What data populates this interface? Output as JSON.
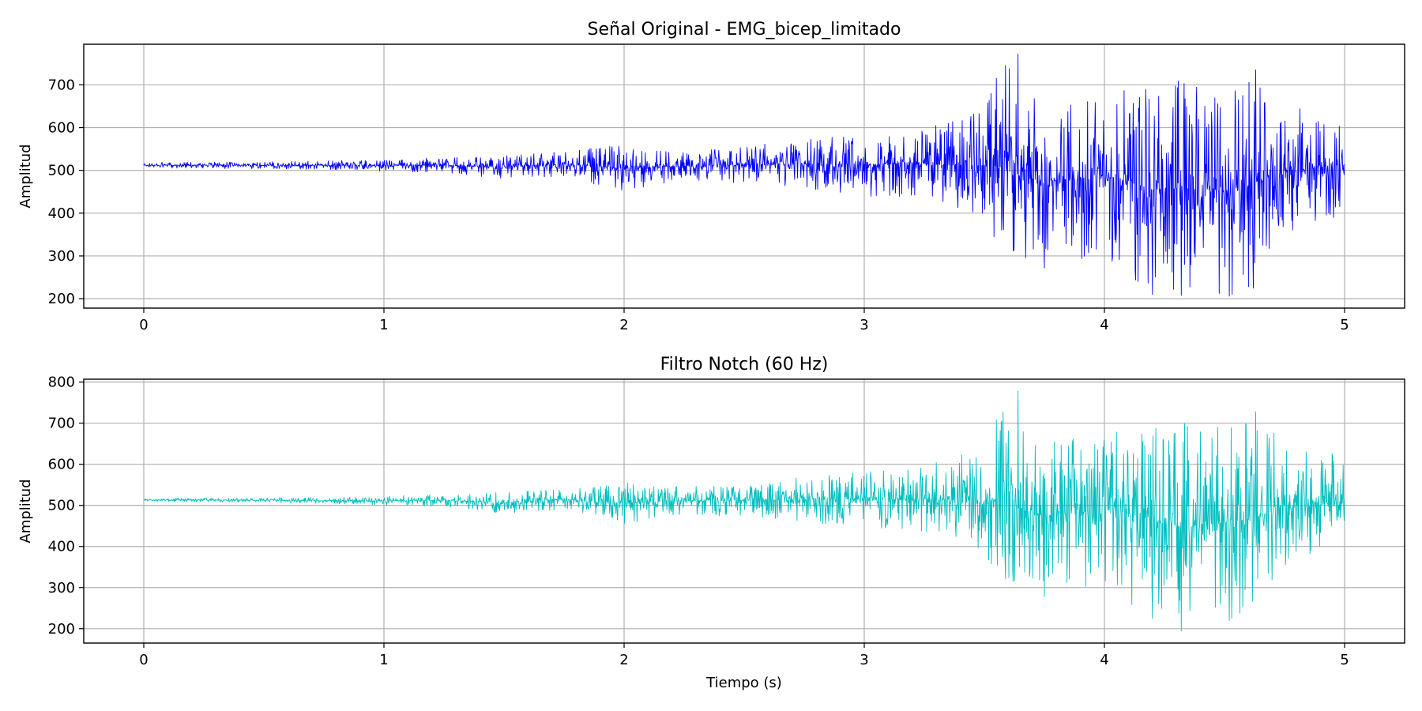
{
  "chart_data": [
    {
      "type": "line",
      "title": "Señal Original - EMG_bicep_limitado",
      "xlabel": "",
      "ylabel": "Amplitud",
      "xlim": [
        -0.25,
        5.25
      ],
      "ylim": [
        178,
        795
      ],
      "xticks": [
        "0",
        "1",
        "2",
        "3",
        "4",
        "5"
      ],
      "yticks": [
        "200",
        "300",
        "400",
        "500",
        "600",
        "700"
      ],
      "grid": true,
      "series": [
        {
          "color": "#0000ff",
          "x": [
            0.0,
            0.25,
            0.5,
            0.75,
            1.0,
            1.25,
            1.5,
            1.75,
            2.0,
            2.25,
            2.5,
            2.75,
            3.0,
            3.25,
            3.5,
            3.55,
            3.62,
            3.64,
            3.75,
            4.0,
            4.2,
            4.32,
            4.52,
            4.63,
            4.75,
            5.0
          ],
          "y": [
            512,
            514,
            512,
            512,
            513,
            518,
            512,
            520,
            515,
            518,
            516,
            520,
            514,
            518,
            512,
            715,
            312,
            772,
            272,
            515,
            210,
            208,
            206,
            735,
            500,
            515
          ],
          "envelope_upper": [
            518,
            520,
            520,
            522,
            525,
            530,
            535,
            545,
            560,
            545,
            555,
            575,
            590,
            600,
            640,
            720,
            770,
            700,
            650,
            680,
            700,
            710,
            700,
            735,
            650,
            630
          ],
          "envelope_lower": [
            506,
            504,
            504,
            502,
            498,
            495,
            480,
            485,
            450,
            475,
            470,
            455,
            440,
            430,
            380,
            310,
            290,
            275,
            300,
            290,
            210,
            205,
            205,
            215,
            340,
            400
          ]
        }
      ]
    },
    {
      "type": "line",
      "title": "Filtro Notch (60 Hz)",
      "xlabel": "Tiempo (s)",
      "ylabel": "Amplitud",
      "xlim": [
        -0.25,
        5.25
      ],
      "ylim": [
        165,
        807
      ],
      "xticks": [
        "0",
        "1",
        "2",
        "3",
        "4",
        "5"
      ],
      "yticks": [
        "200",
        "300",
        "400",
        "500",
        "600",
        "700",
        "800"
      ],
      "grid": true,
      "series": [
        {
          "color": "#00bfbf",
          "x": [
            0.0,
            0.25,
            0.5,
            0.75,
            1.0,
            1.25,
            1.5,
            1.75,
            2.0,
            2.25,
            2.5,
            2.75,
            3.0,
            3.25,
            3.5,
            3.55,
            3.62,
            3.64,
            3.75,
            4.0,
            4.2,
            4.32,
            4.52,
            4.63,
            4.75,
            5.0
          ],
          "y": [
            514,
            513,
            512,
            512,
            513,
            515,
            512,
            518,
            514,
            518,
            516,
            520,
            514,
            518,
            512,
            708,
            315,
            778,
            278,
            515,
            225,
            195,
            220,
            728,
            500,
            515
          ],
          "envelope_upper": [
            517,
            518,
            518,
            520,
            522,
            528,
            532,
            540,
            555,
            545,
            555,
            570,
            585,
            595,
            640,
            710,
            778,
            700,
            650,
            680,
            712,
            700,
            700,
            728,
            650,
            620
          ],
          "envelope_lower": [
            510,
            508,
            507,
            505,
            500,
            497,
            480,
            490,
            455,
            478,
            470,
            460,
            445,
            435,
            385,
            315,
            300,
            280,
            300,
            300,
            225,
            195,
            220,
            210,
            345,
            400
          ]
        }
      ]
    }
  ]
}
